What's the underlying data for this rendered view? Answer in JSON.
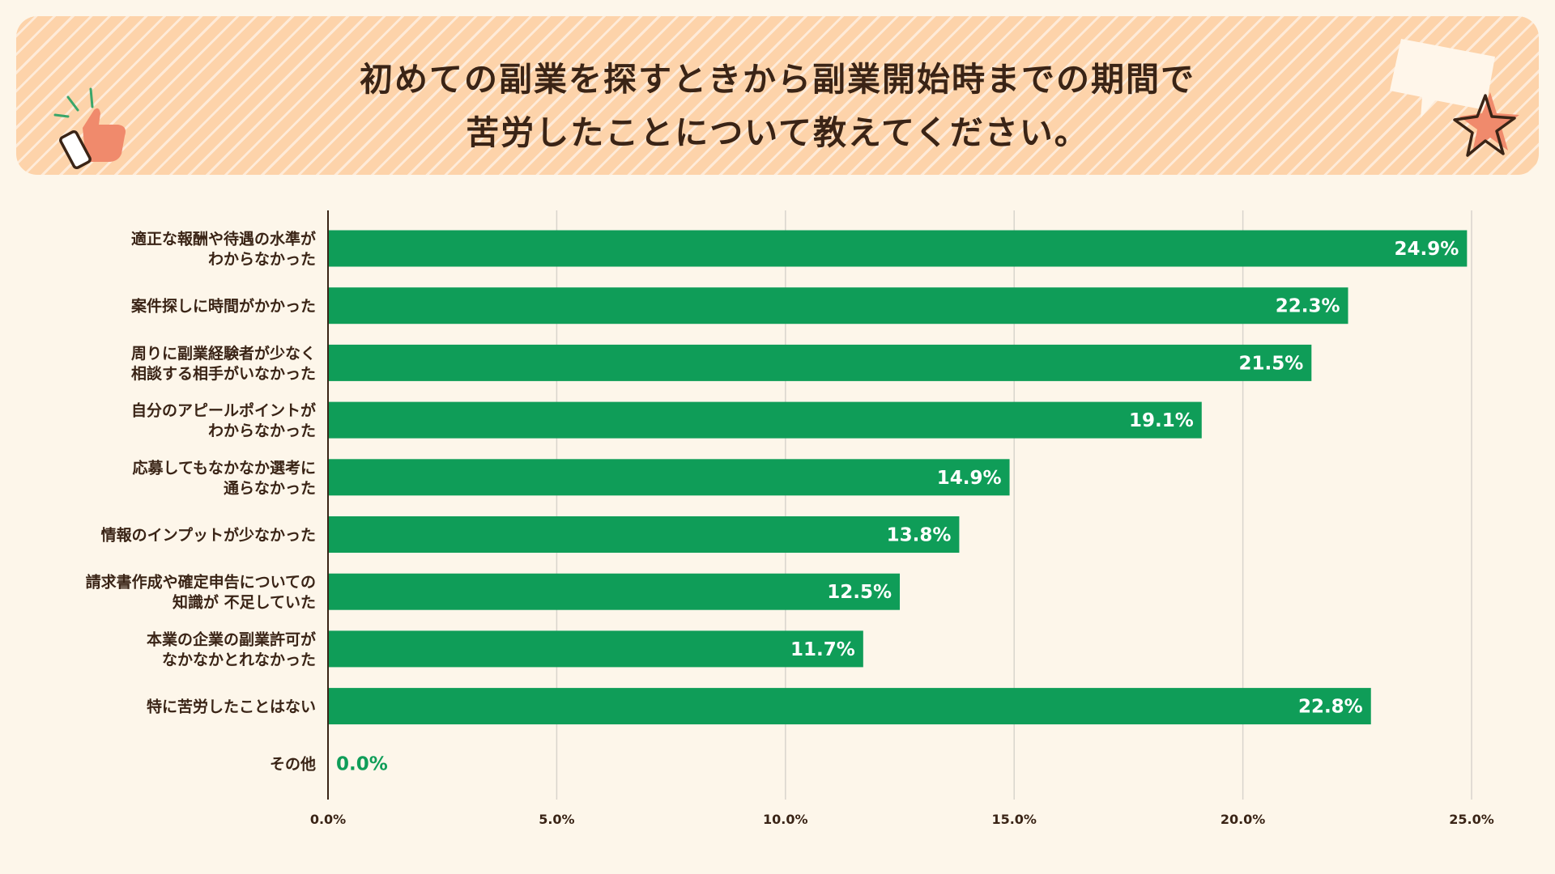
{
  "header": {
    "title_line_1": "初めての副業を探すときから副業開始時までの期間で",
    "title_line_2": "苦労したことについて教えてください。"
  },
  "colors": {
    "background": "#fdf6ea",
    "header_band": "#fdd3aa",
    "bar": "#0f9d58",
    "text": "#3a2416",
    "gridline": "#d9d4cc"
  },
  "chart_data": {
    "type": "bar",
    "orientation": "horizontal",
    "categories": [
      [
        "適正な報酬や待遇の水準が",
        "わからなかった"
      ],
      [
        "案件探しに時間がかかった"
      ],
      [
        "周りに副業経験者が少なく",
        "相談する相手がいなかった"
      ],
      [
        "自分のアピールポイントが",
        "わからなかった"
      ],
      [
        "応募してもなかなか選考に",
        "通らなかった"
      ],
      [
        "情報のインプットが少なかった"
      ],
      [
        "請求書作成や確定申告についての",
        "知識が 不足していた"
      ],
      [
        "本業の企業の副業許可が",
        "なかなかとれなかった"
      ],
      [
        "特に苦労したことはない"
      ],
      [
        "その他"
      ]
    ],
    "values": [
      24.9,
      22.3,
      21.5,
      19.1,
      14.9,
      13.8,
      12.5,
      11.7,
      22.8,
      0.0
    ],
    "value_labels": [
      "24.9%",
      "22.3%",
      "21.5%",
      "19.1%",
      "14.9%",
      "13.8%",
      "12.5%",
      "11.7%",
      "22.8%",
      "0.0%"
    ],
    "xlim": [
      0,
      25
    ],
    "xticks": [
      0,
      5,
      10,
      15,
      20,
      25
    ],
    "xtick_labels": [
      "0.0%",
      "5.0%",
      "10.0%",
      "15.0%",
      "20.0%",
      "25.0%"
    ],
    "grid": true,
    "legend": "none"
  }
}
